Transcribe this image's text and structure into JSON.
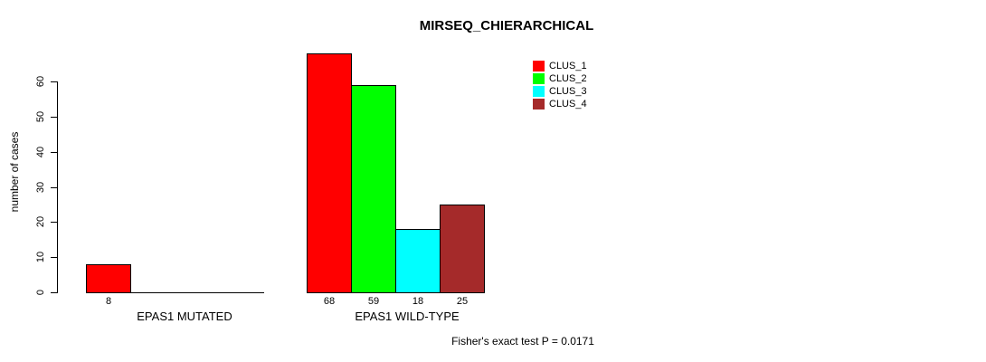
{
  "chart_data": {
    "type": "bar",
    "title": "MIRSEQ_CHIERARCHICAL",
    "ylabel": "number of cases",
    "xlabel": "",
    "ylim": [
      0,
      60
    ],
    "yticks": [
      0,
      10,
      20,
      30,
      40,
      50,
      60
    ],
    "grid": false,
    "legend_position": "top-right",
    "annotation": "Fisher's exact test P = 0.0171",
    "groups": [
      {
        "label": "EPAS1 MUTATED",
        "bars": [
          {
            "series": "CLUS_1",
            "value": 8,
            "color": "#FF0000"
          }
        ]
      },
      {
        "label": "EPAS1 WILD-TYPE",
        "bars": [
          {
            "series": "CLUS_1",
            "value": 68,
            "color": "#FF0000"
          },
          {
            "series": "CLUS_2",
            "value": 59,
            "color": "#00FF00"
          },
          {
            "series": "CLUS_3",
            "value": 18,
            "color": "#00FFFF"
          },
          {
            "series": "CLUS_4",
            "value": 25,
            "color": "#A52A2A"
          }
        ]
      }
    ],
    "legend": [
      {
        "label": "CLUS_1",
        "color": "#FF0000"
      },
      {
        "label": "CLUS_2",
        "color": "#00FF00"
      },
      {
        "label": "CLUS_3",
        "color": "#00FFFF"
      },
      {
        "label": "CLUS_4",
        "color": "#A52A2A"
      }
    ]
  },
  "colors": {
    "axis": "#000000",
    "text": "#000000",
    "background": "#FFFFFF"
  }
}
